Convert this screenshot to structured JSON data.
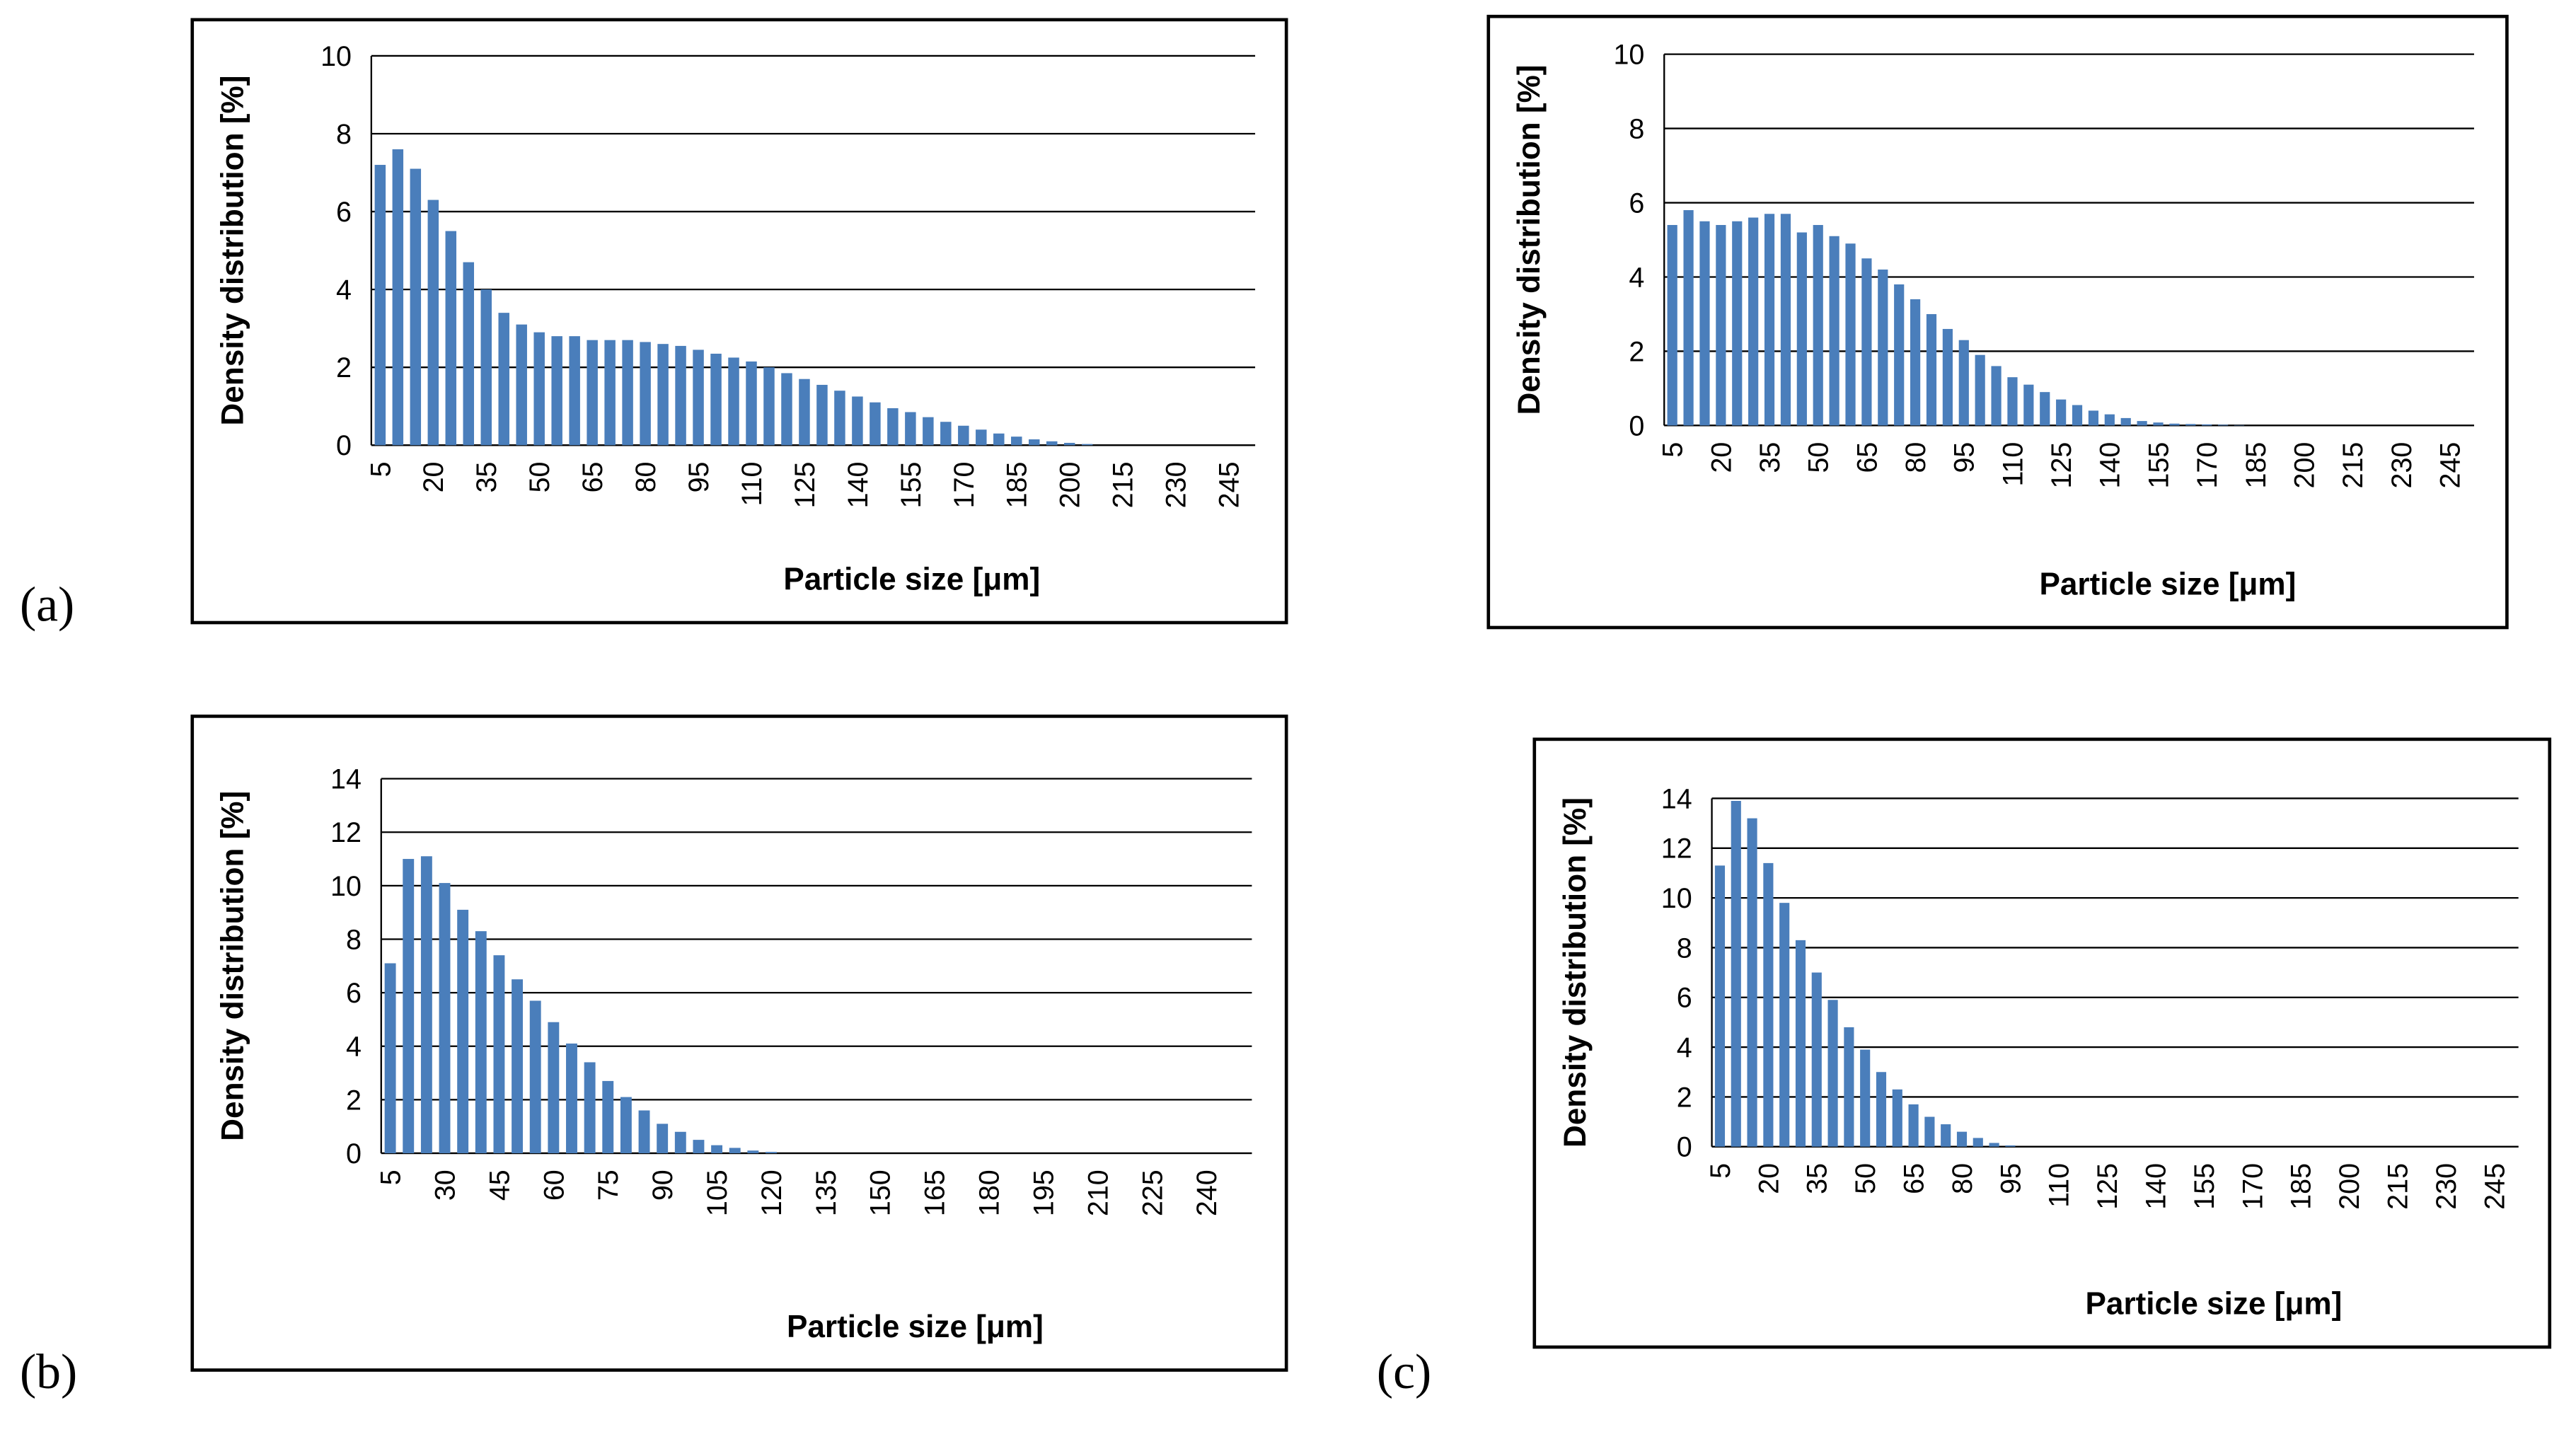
{
  "chart_data": [
    {
      "type": "bar",
      "panel_label": "(a)",
      "y_label": "Density distribution [%]",
      "x_label": "Particle size [μm]",
      "color": "#4a7ebb",
      "grid": true,
      "categories": [
        5,
        null,
        null,
        20,
        null,
        null,
        35,
        null,
        null,
        50,
        null,
        null,
        65,
        null,
        null,
        80,
        null,
        null,
        95,
        null,
        null,
        110,
        null,
        null,
        125,
        null,
        null,
        140,
        null,
        null,
        155,
        null,
        null,
        170,
        null,
        null,
        185,
        null,
        null,
        200,
        null,
        null,
        215,
        null,
        null,
        230,
        null,
        null,
        245,
        null
      ],
      "values": [
        7.2,
        7.6,
        7.1,
        6.3,
        5.5,
        4.7,
        4.0,
        3.4,
        3.1,
        2.9,
        2.8,
        2.8,
        2.7,
        2.7,
        2.7,
        2.65,
        2.6,
        2.55,
        2.45,
        2.35,
        2.25,
        2.15,
        2.0,
        1.85,
        1.7,
        1.55,
        1.4,
        1.25,
        1.1,
        0.95,
        0.85,
        0.72,
        0.6,
        0.5,
        0.4,
        0.3,
        0.22,
        0.15,
        0.1,
        0.06,
        0.03,
        0,
        0,
        0,
        0,
        0,
        0,
        0,
        0,
        0
      ],
      "ylim": [
        0,
        10
      ],
      "yticks": [
        0,
        2,
        4,
        6,
        8,
        10
      ]
    },
    {
      "type": "bar",
      "y_label": "Density distribution [%]",
      "x_label": "Particle size [μm]",
      "color": "#4a7ebb",
      "grid": true,
      "categories": [
        5,
        null,
        null,
        20,
        null,
        null,
        35,
        null,
        null,
        50,
        null,
        null,
        65,
        null,
        null,
        80,
        null,
        null,
        95,
        null,
        null,
        110,
        null,
        null,
        125,
        null,
        null,
        140,
        null,
        null,
        155,
        null,
        null,
        170,
        null,
        null,
        185,
        null,
        null,
        200,
        null,
        null,
        215,
        null,
        null,
        230,
        null,
        null,
        245,
        null
      ],
      "values": [
        5.4,
        5.8,
        5.5,
        5.4,
        5.5,
        5.6,
        5.7,
        5.7,
        5.2,
        5.4,
        5.1,
        4.9,
        4.5,
        4.2,
        3.8,
        3.4,
        3.0,
        2.6,
        2.3,
        1.9,
        1.6,
        1.3,
        1.1,
        0.9,
        0.7,
        0.55,
        0.4,
        0.3,
        0.2,
        0.12,
        0.08,
        0.05,
        0.04,
        0.03,
        0.02,
        0.01,
        0,
        0,
        0,
        0,
        0,
        0,
        0,
        0,
        0,
        0,
        0,
        0,
        0,
        0
      ],
      "ylim": [
        0,
        10
      ],
      "yticks": [
        0,
        2,
        4,
        6,
        8,
        10
      ]
    },
    {
      "type": "bar",
      "panel_label": "(b)",
      "y_label": "Density distribution [%]",
      "x_label": "Particle size [μm]",
      "color": "#4a7ebb",
      "grid": true,
      "categories": [
        5,
        null,
        null,
        30,
        null,
        null,
        45,
        null,
        null,
        60,
        null,
        null,
        75,
        null,
        null,
        90,
        null,
        null,
        105,
        null,
        null,
        120,
        null,
        null,
        135,
        null,
        null,
        150,
        null,
        null,
        165,
        null,
        null,
        180,
        null,
        null,
        195,
        null,
        null,
        210,
        null,
        null,
        225,
        null,
        null,
        240,
        null,
        null
      ],
      "values": [
        7.1,
        11.0,
        11.1,
        10.1,
        9.1,
        8.3,
        7.4,
        6.5,
        5.7,
        4.9,
        4.1,
        3.4,
        2.7,
        2.1,
        1.6,
        1.1,
        0.8,
        0.5,
        0.3,
        0.2,
        0.1,
        0.05,
        0,
        0,
        0,
        0,
        0,
        0,
        0,
        0,
        0,
        0,
        0,
        0,
        0,
        0,
        0,
        0,
        0,
        0,
        0,
        0,
        0,
        0,
        0,
        0,
        0,
        0
      ],
      "ylim": [
        0,
        14
      ],
      "yticks": [
        0,
        2,
        4,
        6,
        8,
        10,
        12,
        14
      ]
    },
    {
      "type": "bar",
      "panel_label": "(c)",
      "y_label": "Density distribution [%]",
      "x_label": "Particle size  [μm]",
      "color": "#4a7ebb",
      "grid": true,
      "categories": [
        5,
        null,
        null,
        20,
        null,
        null,
        35,
        null,
        null,
        50,
        null,
        null,
        65,
        null,
        null,
        80,
        null,
        null,
        95,
        null,
        null,
        110,
        null,
        null,
        125,
        null,
        null,
        140,
        null,
        null,
        155,
        null,
        null,
        170,
        null,
        null,
        185,
        null,
        null,
        200,
        null,
        null,
        215,
        null,
        null,
        230,
        null,
        null,
        245,
        null
      ],
      "values": [
        11.3,
        13.9,
        13.2,
        11.4,
        9.8,
        8.3,
        7.0,
        5.9,
        4.8,
        3.9,
        3.0,
        2.3,
        1.7,
        1.2,
        0.9,
        0.6,
        0.35,
        0.15,
        0.05,
        0,
        0,
        0,
        0,
        0,
        0,
        0,
        0,
        0,
        0,
        0,
        0,
        0,
        0,
        0,
        0,
        0,
        0,
        0,
        0,
        0,
        0,
        0,
        0,
        0,
        0,
        0,
        0,
        0,
        0,
        0
      ],
      "ylim": [
        0,
        14
      ],
      "yticks": [
        0,
        2,
        4,
        6,
        8,
        10,
        12,
        14
      ]
    }
  ]
}
